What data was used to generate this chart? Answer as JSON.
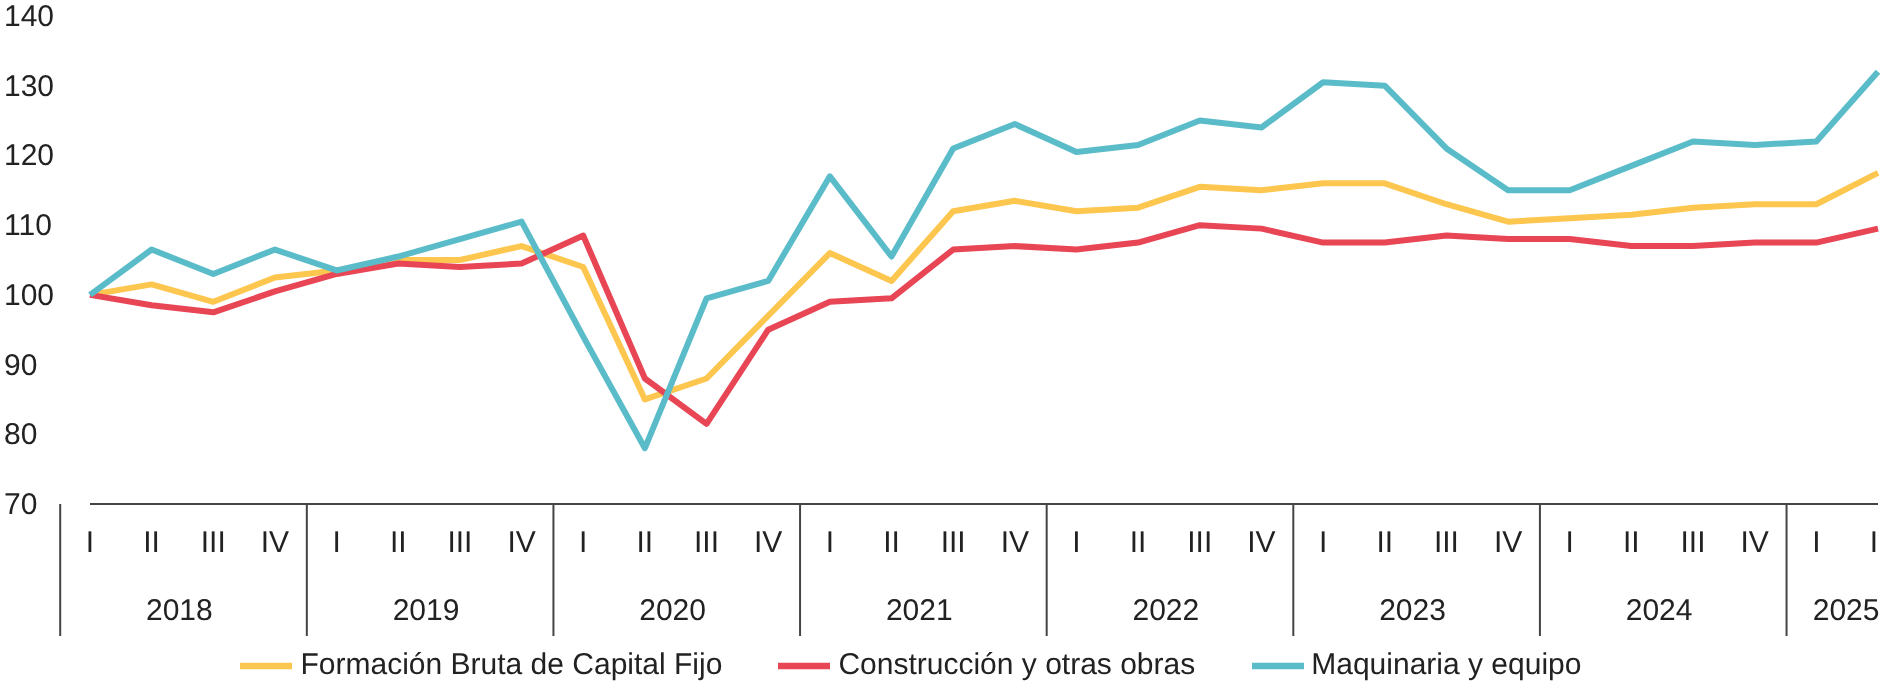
{
  "chart_data": {
    "type": "line",
    "categories": [
      "I",
      "II",
      "III",
      "IV",
      "I",
      "II",
      "III",
      "IV",
      "I",
      "II",
      "III",
      "IV",
      "I",
      "II",
      "III",
      "IV",
      "I",
      "II",
      "III",
      "IV",
      "I",
      "II",
      "III",
      "IV",
      "I",
      "II",
      "III",
      "IV",
      "I",
      "II"
    ],
    "annotations": [
      "2018",
      "2019",
      "2020",
      "2021",
      "2022",
      "2023",
      "2024",
      "2025"
    ],
    "series": [
      {
        "name": "Formación Bruta de Capital Fijo",
        "color": "#fdc64e",
        "values": [
          100,
          101.5,
          99,
          102.5,
          103.5,
          105,
          105,
          107,
          104,
          85,
          88,
          97,
          106,
          102,
          112,
          113.5,
          112,
          112.5,
          115.5,
          115,
          116,
          116,
          113,
          110.5,
          111,
          111.5,
          112.5,
          113,
          113,
          117.5
        ]
      },
      {
        "name": "Construcción y otras obras",
        "color": "#e84555",
        "values": [
          100,
          98.5,
          97.5,
          100.5,
          103,
          104.5,
          104,
          104.5,
          108.5,
          88,
          81.5,
          95,
          99,
          99.5,
          106.5,
          107,
          106.5,
          107.5,
          110,
          109.5,
          107.5,
          107.5,
          108.5,
          108,
          108,
          107,
          107,
          107.5,
          107.5,
          109.5
        ]
      },
      {
        "name": "Maquinaria y equipo",
        "color": "#5bbcc9",
        "values": [
          100,
          106.5,
          103,
          106.5,
          103.5,
          105.5,
          108,
          110.5,
          94,
          78,
          99.5,
          102,
          117,
          105.5,
          121,
          124.5,
          120.5,
          121.5,
          125,
          124,
          130.5,
          130,
          121,
          115,
          115,
          118.5,
          122,
          121.5,
          122,
          132
        ]
      }
    ],
    "ylim": [
      70,
      140
    ],
    "yticks": [
      70,
      80,
      90,
      100,
      110,
      120,
      130,
      140
    ],
    "grid": false,
    "legend": "bottom",
    "marker": "none",
    "line_style": "solid"
  }
}
